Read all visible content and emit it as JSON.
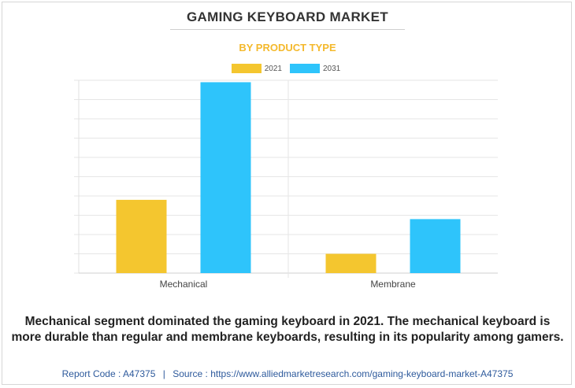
{
  "header": {
    "title": "GAMING KEYBOARD MARKET",
    "subtitle": "BY PRODUCT TYPE"
  },
  "chart_data": {
    "type": "bar",
    "categories": [
      "Mechanical",
      "Membrane"
    ],
    "series": [
      {
        "name": "2021",
        "color": "#f4c62f",
        "values": [
          3.8,
          1.0
        ]
      },
      {
        "name": "2031",
        "color": "#2ec4fb",
        "values": [
          9.9,
          2.8
        ]
      }
    ],
    "ylim": [
      0,
      10
    ],
    "grid": true,
    "legend_position": "top-center",
    "y_tick_labels": "hidden"
  },
  "caption": "Mechanical segment dominated the gaming keyboard in 2021. The mechanical keyboard is more durable than regular and membrane keyboards, resulting in its popularity among gamers.",
  "footer": {
    "report_code": "Report Code : A47375",
    "separator": "|",
    "source": "Source : https://www.alliedmarketresearch.com/gaming-keyboard-market-A47375"
  }
}
